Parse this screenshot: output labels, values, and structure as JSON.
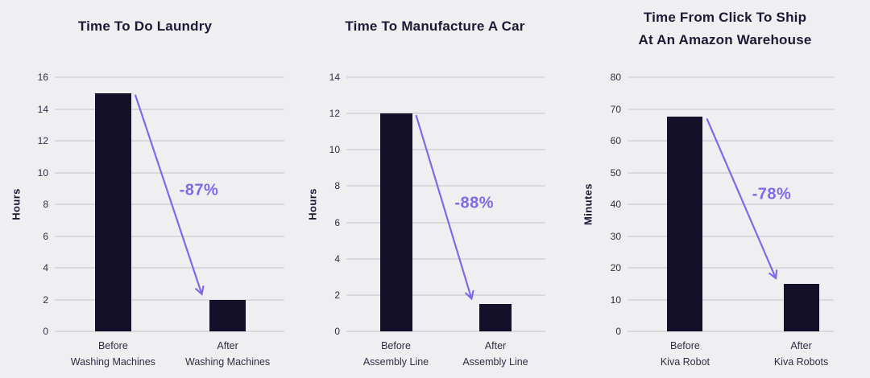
{
  "colors": {
    "background": "#efeef0",
    "bar": "#141029",
    "grid": "#d9d8dd",
    "title_text": "#1c1836",
    "tick_text": "#312d47",
    "accent": "#7c6aec"
  },
  "chart_data": [
    {
      "type": "bar",
      "title_lines": [
        "Time To Do Laundry"
      ],
      "ylabel": "Hours",
      "ylim": [
        0,
        16
      ],
      "yticks": [
        0,
        2,
        4,
        6,
        8,
        10,
        12,
        14,
        16
      ],
      "categories": [
        [
          "Before",
          "Washing Machines"
        ],
        [
          "After",
          "Washing Machines"
        ]
      ],
      "values": [
        15,
        2
      ],
      "annotation": "-87%",
      "grid": true,
      "legend": false
    },
    {
      "type": "bar",
      "title_lines": [
        "Time To Manufacture A Car"
      ],
      "ylabel": "Hours",
      "ylim": [
        0,
        14
      ],
      "yticks": [
        0,
        2,
        4,
        6,
        8,
        10,
        12,
        14
      ],
      "categories": [
        [
          "Before",
          "Assembly Line"
        ],
        [
          "After",
          "Assembly Line"
        ]
      ],
      "values": [
        12,
        1.5
      ],
      "annotation": "-88%",
      "grid": true,
      "legend": false
    },
    {
      "type": "bar",
      "title_lines": [
        "Time From Click To Ship",
        "At An Amazon Warehouse"
      ],
      "ylabel": "Minutes",
      "ylim": [
        0,
        80
      ],
      "yticks": [
        0,
        10,
        20,
        30,
        40,
        50,
        60,
        70,
        80
      ],
      "categories": [
        [
          "Before",
          "Kiva Robot"
        ],
        [
          "After",
          "Kiva Robots"
        ]
      ],
      "values": [
        67.5,
        15
      ],
      "annotation": "-78%",
      "grid": true,
      "legend": false
    }
  ]
}
